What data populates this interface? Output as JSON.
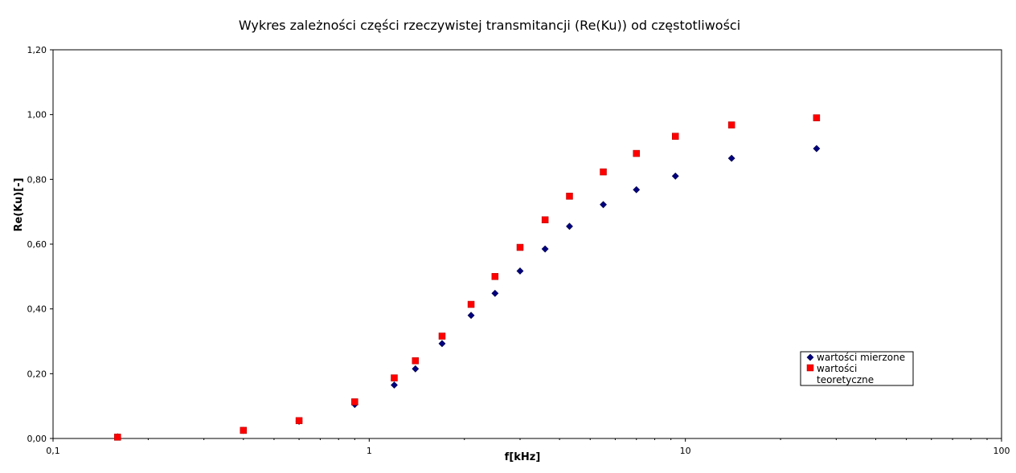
{
  "chart_data": {
    "type": "scatter",
    "title": "Wykres zależności części rzeczywistej transmitancji (Re(Ku)) od częstotliwości",
    "xlabel": "f[kHz]",
    "ylabel": "Re(Ku)[-]",
    "xscale": "log",
    "xlim": [
      0.1,
      100
    ],
    "ylim": [
      0,
      1.2
    ],
    "x_ticks": [
      "0,1",
      "1",
      "10",
      "100"
    ],
    "y_ticks": [
      "0,00",
      "0,20",
      "0,40",
      "0,60",
      "0,80",
      "1,00",
      "1,20"
    ],
    "grid": false,
    "legend_position": "bottom-right",
    "series": [
      {
        "name": "wartości mierzone",
        "marker": "diamond",
        "color": "#000080",
        "x": [
          0.16,
          0.4,
          0.6,
          0.9,
          1.2,
          1.4,
          1.7,
          2.1,
          2.5,
          3.0,
          3.6,
          4.3,
          5.5,
          7.0,
          9.3,
          14,
          26
        ],
        "y": [
          0.005,
          0.025,
          0.053,
          0.105,
          0.165,
          0.215,
          0.293,
          0.38,
          0.448,
          0.517,
          0.585,
          0.655,
          0.722,
          0.768,
          0.81,
          0.865,
          0.895
        ]
      },
      {
        "name": "wartości teoretyczne",
        "legend_lines": [
          "wartości",
          "teoretyczne"
        ],
        "marker": "square",
        "color": "#ff0000",
        "x": [
          0.16,
          0.4,
          0.6,
          0.9,
          1.2,
          1.4,
          1.7,
          2.1,
          2.5,
          3.0,
          3.6,
          4.3,
          5.5,
          7.0,
          9.3,
          14,
          26
        ],
        "y": [
          0.004,
          0.025,
          0.055,
          0.113,
          0.187,
          0.24,
          0.316,
          0.414,
          0.5,
          0.59,
          0.675,
          0.748,
          0.823,
          0.88,
          0.933,
          0.968,
          0.99
        ]
      }
    ]
  }
}
